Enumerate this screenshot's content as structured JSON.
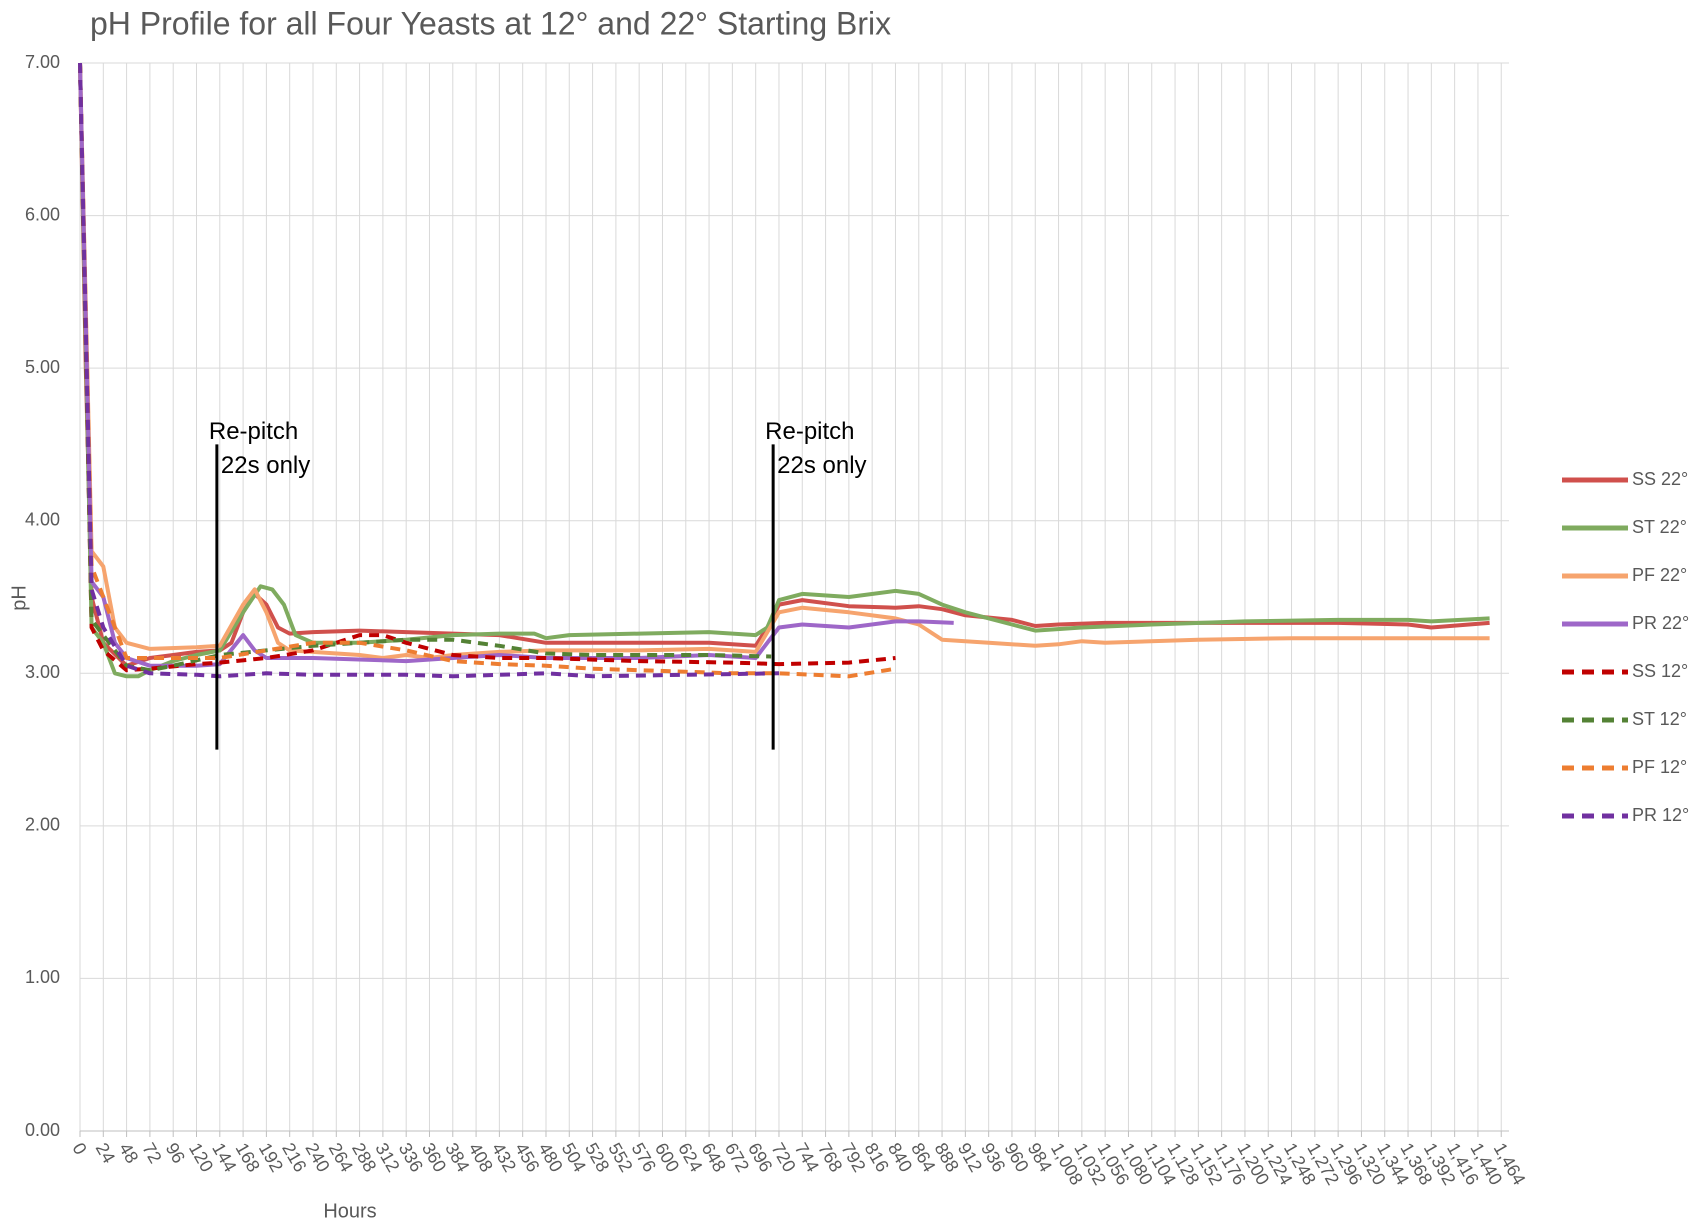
{
  "chart_data": {
    "type": "line",
    "title": "pH Profile for all Four Yeasts at 12° and 22° Starting Brix",
    "x_label": "Hours",
    "y_label": "pH",
    "xlim": [
      0,
      1472
    ],
    "ylim": [
      0,
      7
    ],
    "grid": true,
    "legend": "right",
    "xticks": [
      0,
      24,
      48,
      72,
      96,
      120,
      144,
      168,
      192,
      216,
      240,
      264,
      288,
      312,
      336,
      360,
      384,
      408,
      432,
      456,
      480,
      504,
      528,
      552,
      576,
      600,
      624,
      648,
      672,
      696,
      720,
      744,
      768,
      792,
      816,
      840,
      864,
      888,
      912,
      936,
      960,
      984,
      {
        "value": 1008,
        "label": "1,008"
      },
      {
        "value": 1032,
        "label": "1,032"
      },
      {
        "value": 1056,
        "label": "1,056"
      },
      {
        "value": 1080,
        "label": "1,080"
      },
      {
        "value": 1104,
        "label": "1,104"
      },
      {
        "value": 1128,
        "label": "1,128"
      },
      {
        "value": 1152,
        "label": "1,152"
      },
      {
        "value": 1176,
        "label": "1,176"
      },
      {
        "value": 1200,
        "label": "1,200"
      },
      {
        "value": 1224,
        "label": "1,224"
      },
      {
        "value": 1248,
        "label": "1,248"
      },
      {
        "value": 1272,
        "label": "1,272"
      },
      {
        "value": 1296,
        "label": "1,296"
      },
      {
        "value": 1320,
        "label": "1,320"
      },
      {
        "value": 1344,
        "label": "1,344"
      },
      {
        "value": 1368,
        "label": "1,368"
      },
      {
        "value": 1392,
        "label": "1,392"
      },
      {
        "value": 1416,
        "label": "1,416"
      },
      {
        "value": 1440,
        "label": "1,440"
      },
      {
        "value": 1464,
        "label": "1,464"
      }
    ],
    "yticks": [
      {
        "value": 0,
        "label": "0.00"
      },
      {
        "value": 1,
        "label": "1.00"
      },
      {
        "value": 2,
        "label": "2.00"
      },
      {
        "value": 3,
        "label": "3.00"
      },
      {
        "value": 4,
        "label": "4.00"
      },
      {
        "value": 5,
        "label": "5.00"
      },
      {
        "value": 6,
        "label": "6.00"
      },
      {
        "value": 7,
        "label": "7.00"
      }
    ],
    "annotations": [
      {
        "text": "Re-pitch",
        "text2": "22s only",
        "x": 141,
        "y1": 2.5,
        "y2": 4.5
      },
      {
        "text": "Re-pitch",
        "text2": "22s only",
        "x": 714,
        "y1": 2.5,
        "y2": 4.5
      }
    ],
    "series": [
      {
        "name": "SS 22°",
        "color": "#d0504c",
        "dashed": false,
        "x": [
          0,
          6,
          12,
          24,
          48,
          72,
          96,
          120,
          144,
          156,
          168,
          180,
          192,
          204,
          216,
          240,
          288,
          336,
          384,
          432,
          480,
          504,
          576,
          648,
          696,
          708,
          720,
          744,
          792,
          840,
          864,
          888,
          912,
          960,
          984,
          1008,
          1056,
          1200,
          1296,
          1368,
          1392,
          1452
        ],
        "values": [
          7.0,
          5.0,
          3.5,
          3.2,
          3.05,
          3.1,
          3.12,
          3.14,
          3.15,
          3.2,
          3.4,
          3.52,
          3.45,
          3.3,
          3.26,
          3.27,
          3.28,
          3.27,
          3.26,
          3.25,
          3.2,
          3.2,
          3.2,
          3.2,
          3.18,
          3.3,
          3.45,
          3.48,
          3.44,
          3.43,
          3.44,
          3.42,
          3.38,
          3.35,
          3.31,
          3.32,
          3.33,
          3.33,
          3.33,
          3.32,
          3.3,
          3.33
        ]
      },
      {
        "name": "ST 22°",
        "color": "#7fab5f",
        "dashed": false,
        "x": [
          0,
          12,
          24,
          36,
          48,
          60,
          72,
          96,
          120,
          144,
          168,
          186,
          198,
          210,
          222,
          240,
          288,
          336,
          384,
          432,
          468,
          480,
          504,
          576,
          648,
          696,
          708,
          720,
          744,
          792,
          840,
          864,
          888,
          912,
          960,
          984,
          1032,
          1104,
          1200,
          1296,
          1368,
          1392,
          1452
        ],
        "values": [
          7.0,
          3.3,
          3.2,
          3.0,
          2.98,
          2.98,
          3.02,
          3.08,
          3.12,
          3.15,
          3.4,
          3.57,
          3.55,
          3.45,
          3.25,
          3.2,
          3.2,
          3.22,
          3.25,
          3.26,
          3.26,
          3.23,
          3.25,
          3.26,
          3.27,
          3.25,
          3.3,
          3.48,
          3.52,
          3.5,
          3.54,
          3.52,
          3.45,
          3.4,
          3.32,
          3.28,
          3.3,
          3.32,
          3.34,
          3.35,
          3.35,
          3.34,
          3.36
        ]
      },
      {
        "name": "PF 22°",
        "color": "#f6a46e",
        "dashed": false,
        "x": [
          0,
          12,
          24,
          36,
          48,
          72,
          120,
          144,
          168,
          180,
          192,
          204,
          216,
          288,
          312,
          336,
          360,
          384,
          432,
          480,
          576,
          648,
          696,
          720,
          744,
          792,
          840,
          864,
          888,
          936,
          984,
          1008,
          1032,
          1056,
          1152,
          1248,
          1344,
          1452
        ],
        "values": [
          7.0,
          3.8,
          3.7,
          3.3,
          3.2,
          3.16,
          3.17,
          3.18,
          3.45,
          3.55,
          3.4,
          3.2,
          3.15,
          3.12,
          3.1,
          3.12,
          3.1,
          3.12,
          3.14,
          3.15,
          3.15,
          3.16,
          3.14,
          3.4,
          3.43,
          3.4,
          3.36,
          3.32,
          3.22,
          3.2,
          3.18,
          3.19,
          3.21,
          3.2,
          3.22,
          3.23,
          3.23,
          3.23
        ]
      },
      {
        "name": "PR 22°",
        "color": "#9e67c8",
        "dashed": false,
        "x": [
          0,
          12,
          24,
          36,
          48,
          72,
          120,
          144,
          168,
          180,
          192,
          240,
          336,
          384,
          432,
          480,
          576,
          648,
          696,
          720,
          744,
          792,
          840,
          864,
          900
        ],
        "values": [
          7.0,
          3.6,
          3.5,
          3.2,
          3.1,
          3.05,
          3.05,
          3.06,
          3.25,
          3.15,
          3.1,
          3.1,
          3.08,
          3.1,
          3.12,
          3.1,
          3.1,
          3.12,
          3.1,
          3.3,
          3.32,
          3.3,
          3.34,
          3.34,
          3.33
        ]
      },
      {
        "name": "SS 12°",
        "color": "#c00000",
        "dashed": true,
        "x": [
          0,
          12,
          24,
          48,
          72,
          120,
          144,
          192,
          240,
          264,
          288,
          312,
          336,
          384,
          432,
          480,
          528,
          576,
          672,
          720,
          792,
          840
        ],
        "values": [
          7.0,
          3.3,
          3.15,
          3.02,
          3.03,
          3.06,
          3.07,
          3.1,
          3.15,
          3.2,
          3.25,
          3.25,
          3.2,
          3.12,
          3.1,
          3.1,
          3.09,
          3.08,
          3.07,
          3.06,
          3.07,
          3.1
        ]
      },
      {
        "name": "ST 12°",
        "color": "#548235",
        "dashed": true,
        "x": [
          0,
          12,
          24,
          48,
          72,
          96,
          144,
          192,
          240,
          288,
          336,
          384,
          432,
          480,
          528,
          576,
          648,
          712
        ],
        "values": [
          7.0,
          3.35,
          3.25,
          3.05,
          3.02,
          3.05,
          3.12,
          3.15,
          3.18,
          3.2,
          3.22,
          3.22,
          3.18,
          3.13,
          3.12,
          3.12,
          3.12,
          3.11
        ]
      },
      {
        "name": "PF 12°",
        "color": "#ed7d31",
        "dashed": true,
        "x": [
          0,
          12,
          24,
          48,
          72,
          144,
          192,
          240,
          288,
          336,
          384,
          432,
          480,
          528,
          576,
          672,
          720,
          792,
          840
        ],
        "values": [
          7.0,
          3.7,
          3.5,
          3.1,
          3.1,
          3.1,
          3.15,
          3.2,
          3.2,
          3.15,
          3.08,
          3.06,
          3.05,
          3.03,
          3.02,
          3.0,
          3.0,
          2.98,
          3.03
        ]
      },
      {
        "name": "PR 12°",
        "color": "#7030a0",
        "dashed": true,
        "x": [
          0,
          12,
          24,
          48,
          72,
          120,
          144,
          192,
          240,
          336,
          384,
          480,
          528,
          624,
          720
        ],
        "values": [
          7.0,
          3.55,
          3.3,
          3.05,
          3.0,
          2.99,
          2.98,
          3.0,
          2.99,
          2.99,
          2.98,
          3.0,
          2.98,
          2.99,
          3.0
        ]
      }
    ]
  }
}
